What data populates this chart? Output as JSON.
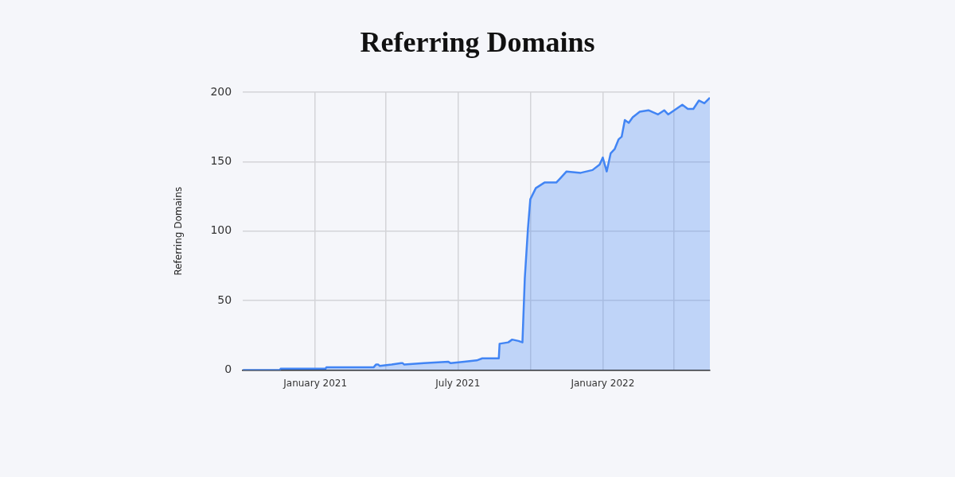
{
  "chart_data": {
    "type": "area",
    "title": "Referring Domains",
    "ylabel": "Referring Domains",
    "x": [
      "2020-10-01",
      "2020-11-17",
      "2020-11-18",
      "2021-01-14",
      "2021-01-15",
      "2021-03-16",
      "2021-03-19",
      "2021-03-22",
      "2021-03-24",
      "2021-04-08",
      "2021-04-20",
      "2021-04-22",
      "2021-04-24",
      "2021-05-19",
      "2021-06-19",
      "2021-06-22",
      "2021-07-09",
      "2021-07-25",
      "2021-08-01",
      "2021-08-22",
      "2021-08-23",
      "2021-09-03",
      "2021-09-08",
      "2021-09-16",
      "2021-09-21",
      "2021-09-24",
      "2021-09-28",
      "2021-10-01",
      "2021-10-08",
      "2021-10-19",
      "2021-11-03",
      "2021-11-08",
      "2021-11-16",
      "2021-12-04",
      "2021-12-19",
      "2021-12-28",
      "2022-01-01",
      "2022-01-06",
      "2022-01-11",
      "2022-01-16",
      "2022-01-21",
      "2022-01-25",
      "2022-01-29",
      "2022-02-03",
      "2022-02-08",
      "2022-02-17",
      "2022-02-28",
      "2022-03-12",
      "2022-03-20",
      "2022-03-25",
      "2022-04-12",
      "2022-04-19",
      "2022-04-26",
      "2022-05-03",
      "2022-05-10",
      "2022-05-17"
    ],
    "series": [
      {
        "color": "#4285f4",
        "values": [
          0,
          0,
          1,
          1,
          2,
          2,
          4,
          4,
          3,
          4,
          5,
          5,
          4,
          5,
          6,
          5,
          6,
          7,
          8.5,
          8.5,
          19,
          20,
          22,
          21,
          20,
          66,
          102,
          123,
          131,
          135,
          135,
          138,
          143,
          142,
          144,
          148,
          153,
          143,
          156,
          159,
          166,
          168,
          180,
          178,
          182,
          186,
          187,
          184,
          187,
          184,
          191,
          188,
          188,
          194,
          192,
          196
        ]
      }
    ],
    "xlim": [
      "2020-10-01",
      "2022-05-17"
    ],
    "xticks": [
      {
        "value": "2021-01-01",
        "label": "January 2021"
      },
      {
        "value": "2021-04-01",
        "label": null
      },
      {
        "value": "2021-07-01",
        "label": "July 2021"
      },
      {
        "value": "2021-10-01",
        "label": null
      },
      {
        "value": "2022-01-01",
        "label": "January 2022"
      },
      {
        "value": "2022-04-01",
        "label": null
      }
    ],
    "ylim": [
      0,
      200
    ],
    "yticks": [
      0,
      50,
      100,
      150,
      200
    ],
    "grid": true,
    "legend": false,
    "marker": "none",
    "line_style": "solid"
  }
}
